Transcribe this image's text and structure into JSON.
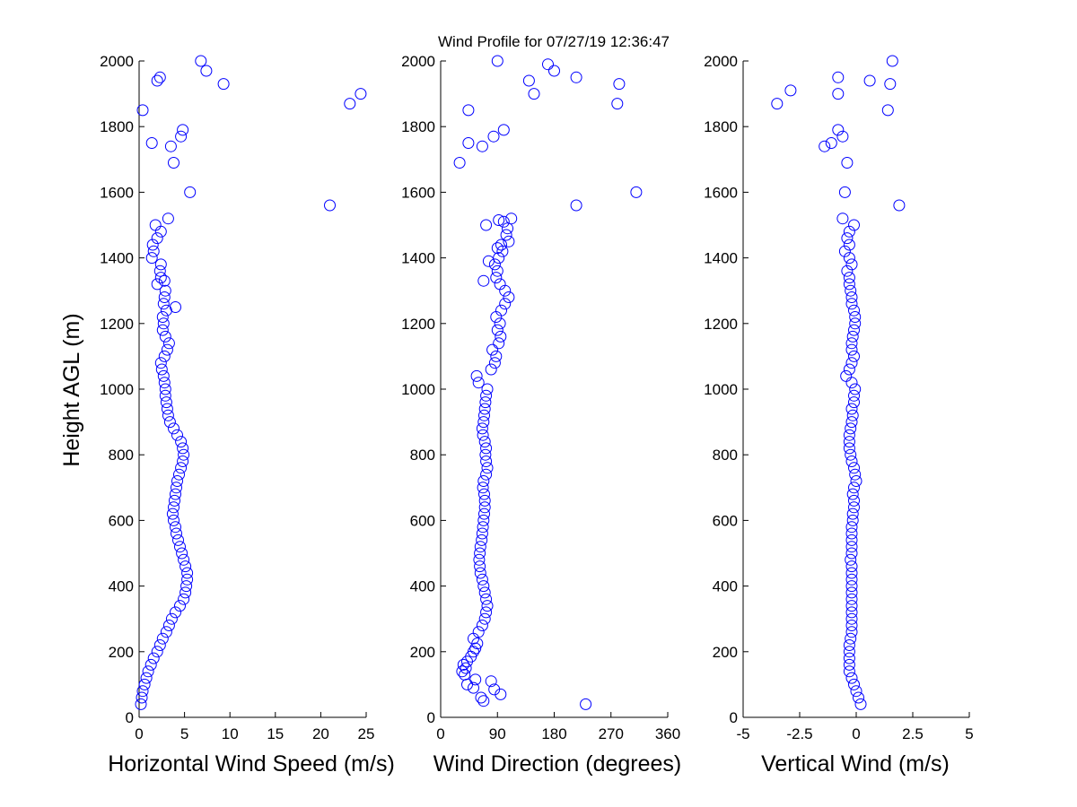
{
  "figure": {
    "title": "Wind Profile for  07/27/19 12:36:47",
    "marker_color": "#0000ff",
    "marker": "open-circle"
  },
  "chart_data": [
    {
      "type": "scatter",
      "xlabel": "Horizontal Wind Speed (m/s)",
      "ylabel": "Height AGL (m)",
      "xlim": [
        0,
        25
      ],
      "ylim": [
        0,
        2000
      ],
      "xticks": [
        "0",
        "5",
        "10",
        "15",
        "20",
        "25"
      ],
      "yticks": [
        "0",
        "200",
        "400",
        "600",
        "800",
        "1000",
        "1200",
        "1400",
        "1600",
        "1800",
        "2000"
      ],
      "grid": false,
      "points": [
        [
          0.2,
          40
        ],
        [
          0.3,
          60
        ],
        [
          0.4,
          80
        ],
        [
          0.6,
          100
        ],
        [
          0.8,
          120
        ],
        [
          1.0,
          140
        ],
        [
          1.3,
          160
        ],
        [
          1.6,
          180
        ],
        [
          2.0,
          200
        ],
        [
          2.3,
          220
        ],
        [
          2.6,
          240
        ],
        [
          3.0,
          260
        ],
        [
          3.3,
          280
        ],
        [
          3.6,
          300
        ],
        [
          4.0,
          320
        ],
        [
          4.5,
          340
        ],
        [
          4.9,
          360
        ],
        [
          5.1,
          380
        ],
        [
          5.2,
          400
        ],
        [
          5.3,
          420
        ],
        [
          5.3,
          440
        ],
        [
          5.1,
          460
        ],
        [
          4.9,
          480
        ],
        [
          4.7,
          500
        ],
        [
          4.5,
          520
        ],
        [
          4.3,
          540
        ],
        [
          4.1,
          560
        ],
        [
          4.0,
          580
        ],
        [
          3.8,
          600
        ],
        [
          3.7,
          620
        ],
        [
          3.8,
          640
        ],
        [
          3.9,
          660
        ],
        [
          4.0,
          680
        ],
        [
          4.1,
          700
        ],
        [
          4.2,
          720
        ],
        [
          4.4,
          740
        ],
        [
          4.6,
          760
        ],
        [
          4.8,
          780
        ],
        [
          4.9,
          800
        ],
        [
          4.8,
          820
        ],
        [
          4.6,
          840
        ],
        [
          4.2,
          860
        ],
        [
          3.8,
          880
        ],
        [
          3.4,
          900
        ],
        [
          3.2,
          920
        ],
        [
          3.1,
          940
        ],
        [
          3.0,
          960
        ],
        [
          2.9,
          980
        ],
        [
          2.9,
          1000
        ],
        [
          2.8,
          1020
        ],
        [
          2.7,
          1040
        ],
        [
          2.5,
          1060
        ],
        [
          2.4,
          1080
        ],
        [
          2.8,
          1100
        ],
        [
          3.1,
          1120
        ],
        [
          3.3,
          1140
        ],
        [
          2.9,
          1160
        ],
        [
          2.6,
          1180
        ],
        [
          2.7,
          1200
        ],
        [
          2.6,
          1220
        ],
        [
          3.0,
          1240
        ],
        [
          4.0,
          1250
        ],
        [
          2.7,
          1260
        ],
        [
          2.8,
          1280
        ],
        [
          2.9,
          1300
        ],
        [
          2.0,
          1320
        ],
        [
          2.8,
          1330
        ],
        [
          2.4,
          1340
        ],
        [
          2.3,
          1360
        ],
        [
          2.4,
          1380
        ],
        [
          1.4,
          1400
        ],
        [
          1.6,
          1420
        ],
        [
          1.5,
          1440
        ],
        [
          2.0,
          1460
        ],
        [
          2.4,
          1480
        ],
        [
          1.8,
          1500
        ],
        [
          3.2,
          1520
        ],
        [
          5.6,
          1600
        ],
        [
          21.0,
          1560
        ],
        [
          3.8,
          1690
        ],
        [
          3.5,
          1740
        ],
        [
          1.4,
          1750
        ],
        [
          4.6,
          1770
        ],
        [
          4.8,
          1790
        ],
        [
          0.4,
          1850
        ],
        [
          23.2,
          1870
        ],
        [
          24.4,
          1900
        ],
        [
          9.3,
          1930
        ],
        [
          2.0,
          1940
        ],
        [
          2.3,
          1950
        ],
        [
          7.4,
          1970
        ],
        [
          6.8,
          2000
        ]
      ]
    },
    {
      "type": "scatter",
      "xlabel": "Wind Direction (degrees)",
      "ylabel": "",
      "xlim": [
        0,
        360
      ],
      "ylim": [
        0,
        2000
      ],
      "xticks": [
        "0",
        "90",
        "180",
        "270",
        "360"
      ],
      "yticks": [
        "0",
        "200",
        "400",
        "600",
        "800",
        "1000",
        "1200",
        "1400",
        "1600",
        "1800",
        "2000"
      ],
      "grid": false,
      "points": [
        [
          230,
          40
        ],
        [
          68,
          50
        ],
        [
          64,
          60
        ],
        [
          95,
          70
        ],
        [
          85,
          85
        ],
        [
          52,
          90
        ],
        [
          42,
          100
        ],
        [
          80,
          110
        ],
        [
          55,
          115
        ],
        [
          38,
          130
        ],
        [
          34,
          140
        ],
        [
          40,
          150
        ],
        [
          36,
          160
        ],
        [
          42,
          170
        ],
        [
          48,
          185
        ],
        [
          52,
          200
        ],
        [
          55,
          210
        ],
        [
          58,
          225
        ],
        [
          52,
          240
        ],
        [
          60,
          260
        ],
        [
          66,
          280
        ],
        [
          70,
          300
        ],
        [
          72,
          320
        ],
        [
          74,
          340
        ],
        [
          72,
          360
        ],
        [
          70,
          380
        ],
        [
          68,
          400
        ],
        [
          66,
          420
        ],
        [
          63,
          440
        ],
        [
          62,
          460
        ],
        [
          61,
          480
        ],
        [
          62,
          500
        ],
        [
          63,
          520
        ],
        [
          65,
          540
        ],
        [
          66,
          560
        ],
        [
          67,
          580
        ],
        [
          68,
          600
        ],
        [
          69,
          620
        ],
        [
          70,
          640
        ],
        [
          70,
          660
        ],
        [
          69,
          680
        ],
        [
          67,
          700
        ],
        [
          68,
          720
        ],
        [
          72,
          740
        ],
        [
          74,
          760
        ],
        [
          72,
          780
        ],
        [
          71,
          800
        ],
        [
          72,
          820
        ],
        [
          70,
          840
        ],
        [
          67,
          860
        ],
        [
          66,
          880
        ],
        [
          68,
          900
        ],
        [
          69,
          920
        ],
        [
          70,
          940
        ],
        [
          71,
          960
        ],
        [
          72,
          980
        ],
        [
          74,
          1000
        ],
        [
          60,
          1020
        ],
        [
          57,
          1040
        ],
        [
          80,
          1060
        ],
        [
          86,
          1080
        ],
        [
          88,
          1100
        ],
        [
          82,
          1120
        ],
        [
          92,
          1140
        ],
        [
          95,
          1160
        ],
        [
          90,
          1180
        ],
        [
          94,
          1200
        ],
        [
          88,
          1220
        ],
        [
          96,
          1240
        ],
        [
          102,
          1260
        ],
        [
          108,
          1280
        ],
        [
          102,
          1300
        ],
        [
          94,
          1320
        ],
        [
          68,
          1330
        ],
        [
          88,
          1340
        ],
        [
          90,
          1360
        ],
        [
          86,
          1380
        ],
        [
          76,
          1390
        ],
        [
          92,
          1400
        ],
        [
          98,
          1420
        ],
        [
          90,
          1430
        ],
        [
          96,
          1440
        ],
        [
          108,
          1450
        ],
        [
          104,
          1470
        ],
        [
          106,
          1490
        ],
        [
          72,
          1500
        ],
        [
          100,
          1510
        ],
        [
          92,
          1515
        ],
        [
          112,
          1520
        ],
        [
          215,
          1560
        ],
        [
          310,
          1600
        ],
        [
          30,
          1690
        ],
        [
          66,
          1740
        ],
        [
          44,
          1750
        ],
        [
          84,
          1770
        ],
        [
          100,
          1790
        ],
        [
          44,
          1850
        ],
        [
          280,
          1870
        ],
        [
          148,
          1900
        ],
        [
          283,
          1930
        ],
        [
          140,
          1940
        ],
        [
          215,
          1950
        ],
        [
          180,
          1970
        ],
        [
          170,
          1990
        ],
        [
          90,
          2000
        ]
      ]
    },
    {
      "type": "scatter",
      "xlabel": "Vertical Wind (m/s)",
      "ylabel": "",
      "xlim": [
        -5,
        5
      ],
      "ylim": [
        0,
        2000
      ],
      "xticks": [
        "-5",
        "-2.5",
        "0",
        "2.5",
        "5"
      ],
      "yticks": [
        "0",
        "200",
        "400",
        "600",
        "800",
        "1000",
        "1200",
        "1400",
        "1600",
        "1800",
        "2000"
      ],
      "grid": false,
      "points": [
        [
          0.2,
          40
        ],
        [
          0.1,
          60
        ],
        [
          0.0,
          80
        ],
        [
          -0.1,
          100
        ],
        [
          -0.2,
          120
        ],
        [
          -0.3,
          140
        ],
        [
          -0.3,
          160
        ],
        [
          -0.3,
          180
        ],
        [
          -0.3,
          200
        ],
        [
          -0.3,
          220
        ],
        [
          -0.25,
          240
        ],
        [
          -0.2,
          260
        ],
        [
          -0.2,
          280
        ],
        [
          -0.2,
          300
        ],
        [
          -0.2,
          320
        ],
        [
          -0.2,
          340
        ],
        [
          -0.2,
          360
        ],
        [
          -0.2,
          380
        ],
        [
          -0.2,
          400
        ],
        [
          -0.2,
          420
        ],
        [
          -0.2,
          440
        ],
        [
          -0.2,
          460
        ],
        [
          -0.25,
          480
        ],
        [
          -0.2,
          500
        ],
        [
          -0.2,
          520
        ],
        [
          -0.2,
          540
        ],
        [
          -0.2,
          560
        ],
        [
          -0.2,
          580
        ],
        [
          -0.15,
          600
        ],
        [
          -0.15,
          620
        ],
        [
          -0.1,
          640
        ],
        [
          -0.1,
          660
        ],
        [
          -0.15,
          680
        ],
        [
          -0.1,
          700
        ],
        [
          0.0,
          720
        ],
        [
          -0.05,
          740
        ],
        [
          -0.1,
          760
        ],
        [
          -0.2,
          780
        ],
        [
          -0.25,
          800
        ],
        [
          -0.3,
          820
        ],
        [
          -0.3,
          840
        ],
        [
          -0.3,
          860
        ],
        [
          -0.25,
          880
        ],
        [
          -0.2,
          900
        ],
        [
          -0.15,
          920
        ],
        [
          -0.2,
          940
        ],
        [
          -0.1,
          960
        ],
        [
          -0.1,
          980
        ],
        [
          -0.05,
          1000
        ],
        [
          -0.2,
          1020
        ],
        [
          -0.45,
          1040
        ],
        [
          -0.3,
          1060
        ],
        [
          -0.2,
          1080
        ],
        [
          -0.1,
          1100
        ],
        [
          -0.2,
          1120
        ],
        [
          -0.2,
          1140
        ],
        [
          -0.15,
          1160
        ],
        [
          -0.1,
          1180
        ],
        [
          -0.05,
          1200
        ],
        [
          -0.05,
          1220
        ],
        [
          -0.1,
          1240
        ],
        [
          -0.2,
          1260
        ],
        [
          -0.2,
          1280
        ],
        [
          -0.25,
          1300
        ],
        [
          -0.3,
          1320
        ],
        [
          -0.3,
          1340
        ],
        [
          -0.4,
          1360
        ],
        [
          -0.2,
          1380
        ],
        [
          -0.3,
          1400
        ],
        [
          -0.5,
          1420
        ],
        [
          -0.3,
          1440
        ],
        [
          -0.4,
          1460
        ],
        [
          -0.3,
          1480
        ],
        [
          -0.1,
          1500
        ],
        [
          -0.6,
          1520
        ],
        [
          1.9,
          1560
        ],
        [
          -0.5,
          1600
        ],
        [
          -0.4,
          1690
        ],
        [
          -1.4,
          1740
        ],
        [
          -1.1,
          1750
        ],
        [
          -0.6,
          1770
        ],
        [
          -0.8,
          1790
        ],
        [
          1.4,
          1850
        ],
        [
          -3.5,
          1870
        ],
        [
          -0.8,
          1900
        ],
        [
          -2.9,
          1910
        ],
        [
          1.5,
          1930
        ],
        [
          0.6,
          1940
        ],
        [
          -0.8,
          1950
        ],
        [
          1.6,
          2000
        ]
      ]
    }
  ]
}
